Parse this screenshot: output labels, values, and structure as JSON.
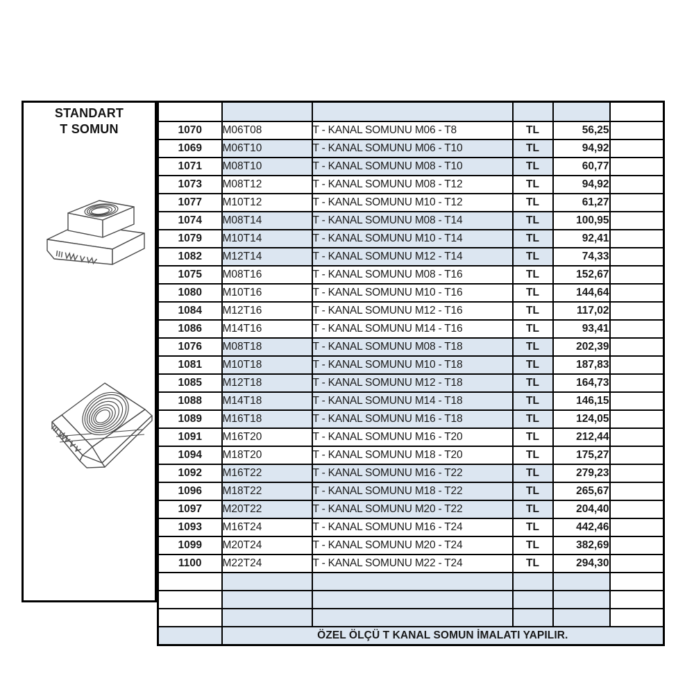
{
  "colors": {
    "row_shade": "#dce6f1",
    "border": "#000000",
    "note_red": "#ff0000",
    "text": "#1a1a1a",
    "background": "#ffffff"
  },
  "left_panel": {
    "title_line1": "STANDART",
    "title_line2": "T SOMUN",
    "drawings": [
      "t-nut-isometric-drawing",
      "t-nut-tilted-drawing"
    ]
  },
  "table": {
    "header_empty": true,
    "currency_label": "TL",
    "rows": [
      {
        "code": "1070",
        "part": "M06T08",
        "desc": "T - KANAL SOMUNU M06 - T8",
        "cur": "TL",
        "price": "56,25",
        "shaded": false
      },
      {
        "code": "1069",
        "part": "M06T10",
        "desc": "T - KANAL SOMUNU M06 - T10",
        "cur": "TL",
        "price": "94,92",
        "shaded": true
      },
      {
        "code": "1071",
        "part": "M08T10",
        "desc": "T - KANAL SOMUNU M08 - T10",
        "cur": "TL",
        "price": "60,77",
        "shaded": true
      },
      {
        "code": "1073",
        "part": "M08T12",
        "desc": "T - KANAL SOMUNU M08 - T12",
        "cur": "TL",
        "price": "94,92",
        "shaded": false
      },
      {
        "code": "1077",
        "part": "M10T12",
        "desc": "T - KANAL SOMUNU M10 - T12",
        "cur": "TL",
        "price": "61,27",
        "shaded": false
      },
      {
        "code": "1074",
        "part": "M08T14",
        "desc": "T - KANAL SOMUNU M08 - T14",
        "cur": "TL",
        "price": "100,95",
        "shaded": true
      },
      {
        "code": "1079",
        "part": "M10T14",
        "desc": "T - KANAL SOMUNU M10 - T14",
        "cur": "TL",
        "price": "92,41",
        "shaded": true
      },
      {
        "code": "1082",
        "part": "M12T14",
        "desc": "T - KANAL SOMUNU M12 - T14",
        "cur": "TL",
        "price": "74,33",
        "shaded": true
      },
      {
        "code": "1075",
        "part": "M08T16",
        "desc": "T - KANAL SOMUNU M08 - T16",
        "cur": "TL",
        "price": "152,67",
        "shaded": false
      },
      {
        "code": "1080",
        "part": "M10T16",
        "desc": "T - KANAL SOMUNU M10 - T16",
        "cur": "TL",
        "price": "144,64",
        "shaded": false
      },
      {
        "code": "1084",
        "part": "M12T16",
        "desc": "T - KANAL SOMUNU M12 - T16",
        "cur": "TL",
        "price": "117,02",
        "shaded": false
      },
      {
        "code": "1086",
        "part": "M14T16",
        "desc": "T - KANAL SOMUNU M14 - T16",
        "cur": "TL",
        "price": "93,41",
        "shaded": false
      },
      {
        "code": "1076",
        "part": "M08T18",
        "desc": "T - KANAL SOMUNU M08 - T18",
        "cur": "TL",
        "price": "202,39",
        "shaded": true
      },
      {
        "code": "1081",
        "part": "M10T18",
        "desc": "T - KANAL SOMUNU M10 - T18",
        "cur": "TL",
        "price": "187,83",
        "shaded": true
      },
      {
        "code": "1085",
        "part": "M12T18",
        "desc": "T - KANAL SOMUNU M12 - T18",
        "cur": "TL",
        "price": "164,73",
        "shaded": true
      },
      {
        "code": "1088",
        "part": "M14T18",
        "desc": "T - KANAL SOMUNU M14 - T18",
        "cur": "TL",
        "price": "146,15",
        "shaded": true
      },
      {
        "code": "1089",
        "part": "M16T18",
        "desc": "T - KANAL SOMUNU M16 - T18",
        "cur": "TL",
        "price": "124,05",
        "shaded": true
      },
      {
        "code": "1091",
        "part": "M16T20",
        "desc": "T - KANAL SOMUNU M16 - T20",
        "cur": "TL",
        "price": "212,44",
        "shaded": false
      },
      {
        "code": "1094",
        "part": "M18T20",
        "desc": "T - KANAL SOMUNU M18 - T20",
        "cur": "TL",
        "price": "175,27",
        "shaded": false
      },
      {
        "code": "1092",
        "part": "M16T22",
        "desc": "T - KANAL SOMUNU M16 - T22",
        "cur": "TL",
        "price": "279,23",
        "shaded": true
      },
      {
        "code": "1096",
        "part": "M18T22",
        "desc": "T - KANAL SOMUNU M18 - T22",
        "cur": "TL",
        "price": "265,67",
        "shaded": true
      },
      {
        "code": "1097",
        "part": "M20T22",
        "desc": "T - KANAL SOMUNU M20 - T22",
        "cur": "TL",
        "price": "204,40",
        "shaded": true
      },
      {
        "code": "1093",
        "part": "M16T24",
        "desc": "T - KANAL SOMUNU M16 - T24",
        "cur": "TL",
        "price": "442,46",
        "shaded": false
      },
      {
        "code": "1099",
        "part": "M20T24",
        "desc": "T - KANAL SOMUNU M20 - T24",
        "cur": "TL",
        "price": "382,69",
        "shaded": false
      },
      {
        "code": "1100",
        "part": "M22T24",
        "desc": "T - KANAL SOMUNU M22 - T24",
        "cur": "TL",
        "price": "294,30",
        "shaded": false
      }
    ],
    "empty_row_count": 3,
    "footer_note": "ÖZEL ÖLÇÜ T KANAL SOMUN İMALATI YAPILIR."
  }
}
